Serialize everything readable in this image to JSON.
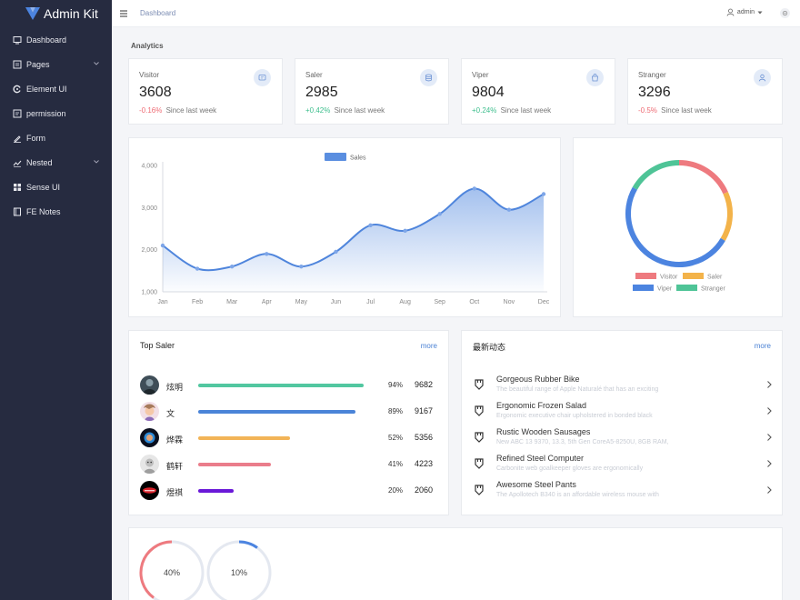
{
  "app": {
    "title": "Admin Kit"
  },
  "sidebar": {
    "items": [
      {
        "label": "Dashboard",
        "icon": "dashboard-icon",
        "has_children": false
      },
      {
        "label": "Pages",
        "icon": "pages-icon",
        "has_children": true
      },
      {
        "label": "Element UI",
        "icon": "element-icon",
        "has_children": false
      },
      {
        "label": "permission",
        "icon": "permission-icon",
        "has_children": false
      },
      {
        "label": "Form",
        "icon": "form-icon",
        "has_children": false
      },
      {
        "label": "Nested",
        "icon": "nested-icon",
        "has_children": true
      },
      {
        "label": "Sense UI",
        "icon": "grid-icon",
        "has_children": false
      },
      {
        "label": "FE Notes",
        "icon": "notes-icon",
        "has_children": false
      }
    ]
  },
  "header": {
    "breadcrumb": "Dashboard",
    "user": "admin"
  },
  "analytics": {
    "title": "Analytics"
  },
  "stats": [
    {
      "label": "Visitor",
      "value": "3608",
      "change": "-0.16%",
      "trend": "down",
      "suffix": "Since last week",
      "icon": "message-icon"
    },
    {
      "label": "Saler",
      "value": "2985",
      "change": "+0.42%",
      "trend": "up",
      "suffix": "Since last week",
      "icon": "database-icon"
    },
    {
      "label": "Viper",
      "value": "9804",
      "change": "+0.24%",
      "trend": "up",
      "suffix": "Since last week",
      "icon": "bag-icon"
    },
    {
      "label": "Stranger",
      "value": "3296",
      "change": "-0.5%",
      "trend": "down",
      "suffix": "Since last week",
      "icon": "user-icon"
    }
  ],
  "chart_data": [
    {
      "type": "line",
      "series": [
        {
          "name": "Sales",
          "values": [
            2100,
            1550,
            1600,
            1900,
            1600,
            1950,
            2580,
            2450,
            2850,
            3450,
            2950,
            3320
          ]
        }
      ],
      "categories": [
        "Jan",
        "Feb",
        "Mar",
        "Apr",
        "May",
        "Jun",
        "Jul",
        "Aug",
        "Sep",
        "Oct",
        "Nov",
        "Dec"
      ],
      "y_ticks": [
        "1,000",
        "2,000",
        "3,000",
        "4,000"
      ],
      "ylim": [
        1000,
        4000
      ],
      "grid": false,
      "legend": "top-center",
      "area_fill": true,
      "color": "#5a8ee0"
    },
    {
      "type": "pie",
      "donut": true,
      "categories": [
        "Visitor",
        "Saler",
        "Viper",
        "Stranger"
      ],
      "values": [
        3608,
        2985,
        9804,
        3296
      ],
      "colors": [
        "#ee7a7f",
        "#f3b34a",
        "#4c84e0",
        "#4fc497"
      ],
      "legend": "bottom"
    }
  ],
  "top_saler": {
    "title": "Top Saler",
    "more": "more",
    "rows": [
      {
        "name": "炫明",
        "percent": "94%",
        "fraction": 0.94,
        "value": "9682",
        "color": "#52c7a0",
        "avatar": "avatar-dark-portrait"
      },
      {
        "name": "文",
        "percent": "89%",
        "fraction": 0.89,
        "value": "9167",
        "color": "#4a84d8",
        "avatar": "avatar-cartoon"
      },
      {
        "name": "烨霖",
        "percent": "52%",
        "fraction": 0.52,
        "value": "5356",
        "color": "#f2b457",
        "avatar": "avatar-blue-glow"
      },
      {
        "name": "鹤轩",
        "percent": "41%",
        "fraction": 0.41,
        "value": "4223",
        "color": "#ea7d8b",
        "avatar": "avatar-grey-face"
      },
      {
        "name": "煜祺",
        "percent": "20%",
        "fraction": 0.2,
        "value": "2060",
        "color": "#6a18d8",
        "avatar": "avatar-red-logo"
      }
    ]
  },
  "activity": {
    "title": "最新动态",
    "more": "more",
    "items": [
      {
        "title": "Gorgeous Rubber Bike",
        "subtitle": "The beautiful range of Apple Naturalé that has an exciting"
      },
      {
        "title": "Ergonomic Frozen Salad",
        "subtitle": "Ergonomic executive chair upholstered in bonded black"
      },
      {
        "title": "Rustic Wooden Sausages",
        "subtitle": "New ABC 13 9370, 13.3, 5th Gen CoreA5-8250U, 8GB RAM,"
      },
      {
        "title": "Refined Steel Computer",
        "subtitle": "Carbonite web goalkeeper gloves are ergonomically"
      },
      {
        "title": "Awesome Steel Pants",
        "subtitle": "The Apollotech B340 is an affordable wireless mouse with"
      }
    ]
  },
  "gauges": [
    {
      "label": "40%",
      "fraction": 0.4,
      "color": "#ee7a7f"
    },
    {
      "label": "10%",
      "fraction": 0.1,
      "color": "#4c84e0"
    }
  ]
}
